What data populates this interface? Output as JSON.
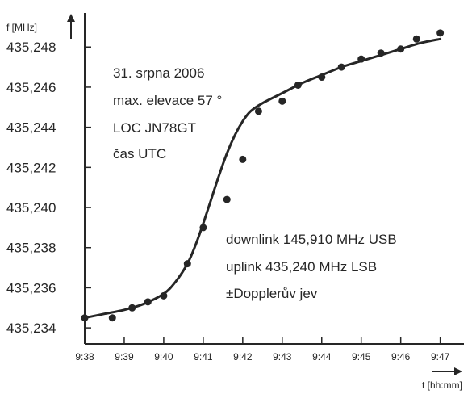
{
  "chart_data": {
    "type": "scatter",
    "title": "",
    "ylabel": "f [MHz]",
    "xlabel": "t [hh:mm]",
    "x_ticks": [
      "9:38",
      "9:39",
      "9:40",
      "9:41",
      "9:42",
      "9:43",
      "9:44",
      "9:45",
      "9:46",
      "9:47"
    ],
    "x_tick_values": [
      0,
      1,
      2,
      3,
      4,
      5,
      6,
      7,
      8,
      9
    ],
    "y_ticks": [
      "435,234",
      "435,236",
      "435,238",
      "435,240",
      "435,242",
      "435,244",
      "435,246",
      "435,248"
    ],
    "y_tick_values": [
      435.234,
      435.236,
      435.238,
      435.24,
      435.242,
      435.244,
      435.246,
      435.248
    ],
    "xlim": [
      "9:38",
      "9:47.6"
    ],
    "ylim": [
      435.2332,
      435.2497
    ],
    "grid": false,
    "series": [
      {
        "type": "scatter",
        "x": [
          "9:38",
          "9:38.7",
          "9:39.2",
          "9:39.6",
          "9:40",
          "9:40.6",
          "9:41",
          "9:41.6",
          "9:42",
          "9:42.4",
          "9:43",
          "9:43.4",
          "9:44",
          "9:44.5",
          "9:45",
          "9:45.5",
          "9:46",
          "9:46.4",
          "9:47"
        ],
        "y": [
          435.2345,
          435.2345,
          435.235,
          435.2353,
          435.2356,
          435.2372,
          435.239,
          435.2404,
          435.2424,
          435.2448,
          435.2453,
          435.2461,
          435.2465,
          435.247,
          435.2474,
          435.2477,
          435.2479,
          435.2484,
          435.2487
        ]
      },
      {
        "type": "line",
        "x": [
          "9:38",
          "9:38.5",
          "9:39",
          "9:39.5",
          "9:40",
          "9:40.3",
          "9:40.6",
          "9:40.8",
          "9:41",
          "9:41.2",
          "9:41.4",
          "9:41.6",
          "9:41.8",
          "9:42",
          "9:42.2",
          "9:42.5",
          "9:43",
          "9:43.5",
          "9:44",
          "9:44.5",
          "9:45",
          "9:45.5",
          "9:46",
          "9:46.5",
          "9:47"
        ],
        "y": [
          435.2345,
          435.2347,
          435.2349,
          435.2352,
          435.2357,
          435.2363,
          435.2372,
          435.2381,
          435.2392,
          435.2404,
          435.2416,
          435.2427,
          435.2436,
          435.2443,
          435.2448,
          435.2452,
          435.2457,
          435.2462,
          435.2466,
          435.247,
          435.2473,
          435.2476,
          435.2479,
          435.2482,
          435.2484
        ]
      }
    ],
    "annotations": {
      "left_block": [
        "31. srpna 2006",
        "max. elevace 57 °",
        "LOC JN78GT",
        "čas UTC"
      ],
      "right_block": [
        "downlink 145,910 MHz USB",
        "uplink 435,240 MHz LSB",
        "±Dopplerův jev"
      ]
    }
  },
  "style": {
    "ink": "#262626",
    "background": "#ffffff"
  }
}
